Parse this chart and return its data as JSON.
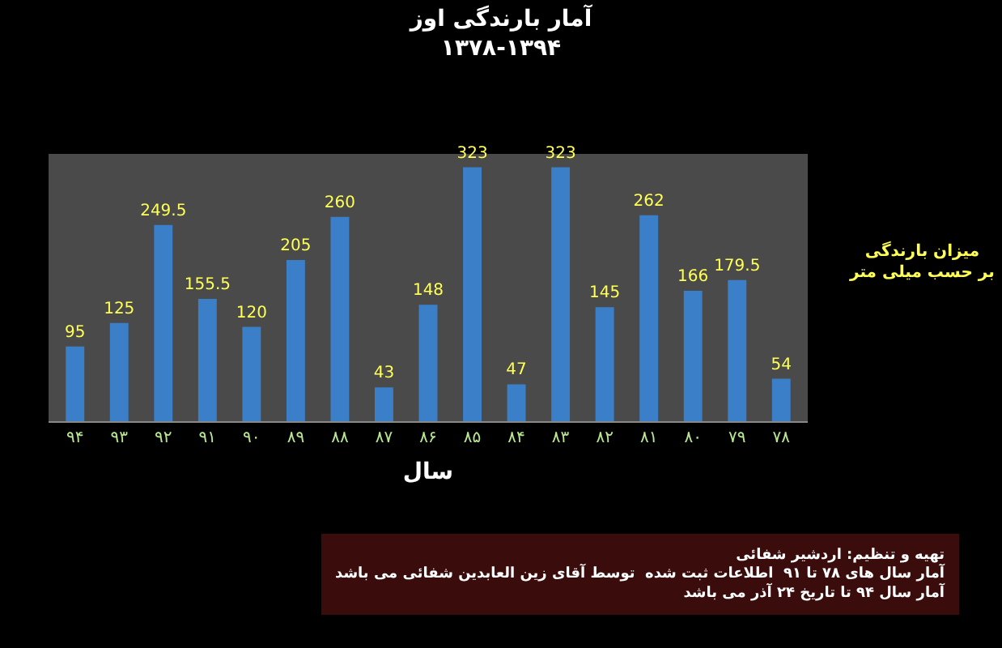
{
  "chart_data": {
    "type": "bar",
    "title": "آمار بارندگی اوز",
    "subtitle": "۱۳۷۸-۱۳۹۴",
    "xlabel": "سال",
    "ylabel": "میزان بارندگی\nبر حسب میلی متر",
    "categories": [
      "۹۴",
      "۹۳",
      "۹۲",
      "۹۱",
      "۹۰",
      "۸۹",
      "۸۸",
      "۸۷",
      "۸۶",
      "۸۵",
      "۸۴",
      "۸۳",
      "۸۲",
      "۸۱",
      "۸۰",
      "۷۹",
      "۷۸"
    ],
    "values": [
      95,
      125,
      249.5,
      155.5,
      120,
      205,
      260,
      43,
      148,
      323,
      47,
      323,
      145,
      262,
      166,
      179.5,
      54
    ],
    "color": "#3b7fc8",
    "data_labels": true,
    "grid": false,
    "annotations": [
      "تهیه و تنظیم: اردشیر شفائی\nآمار سال های ۷۸ تا ۹۱  اطلاعات ثبت شده  توسط آقای زین العابدین شفائی می باشد\nآمار سال ۹۴ تا تاریخ ۲۴ آذر می باشد"
    ]
  }
}
